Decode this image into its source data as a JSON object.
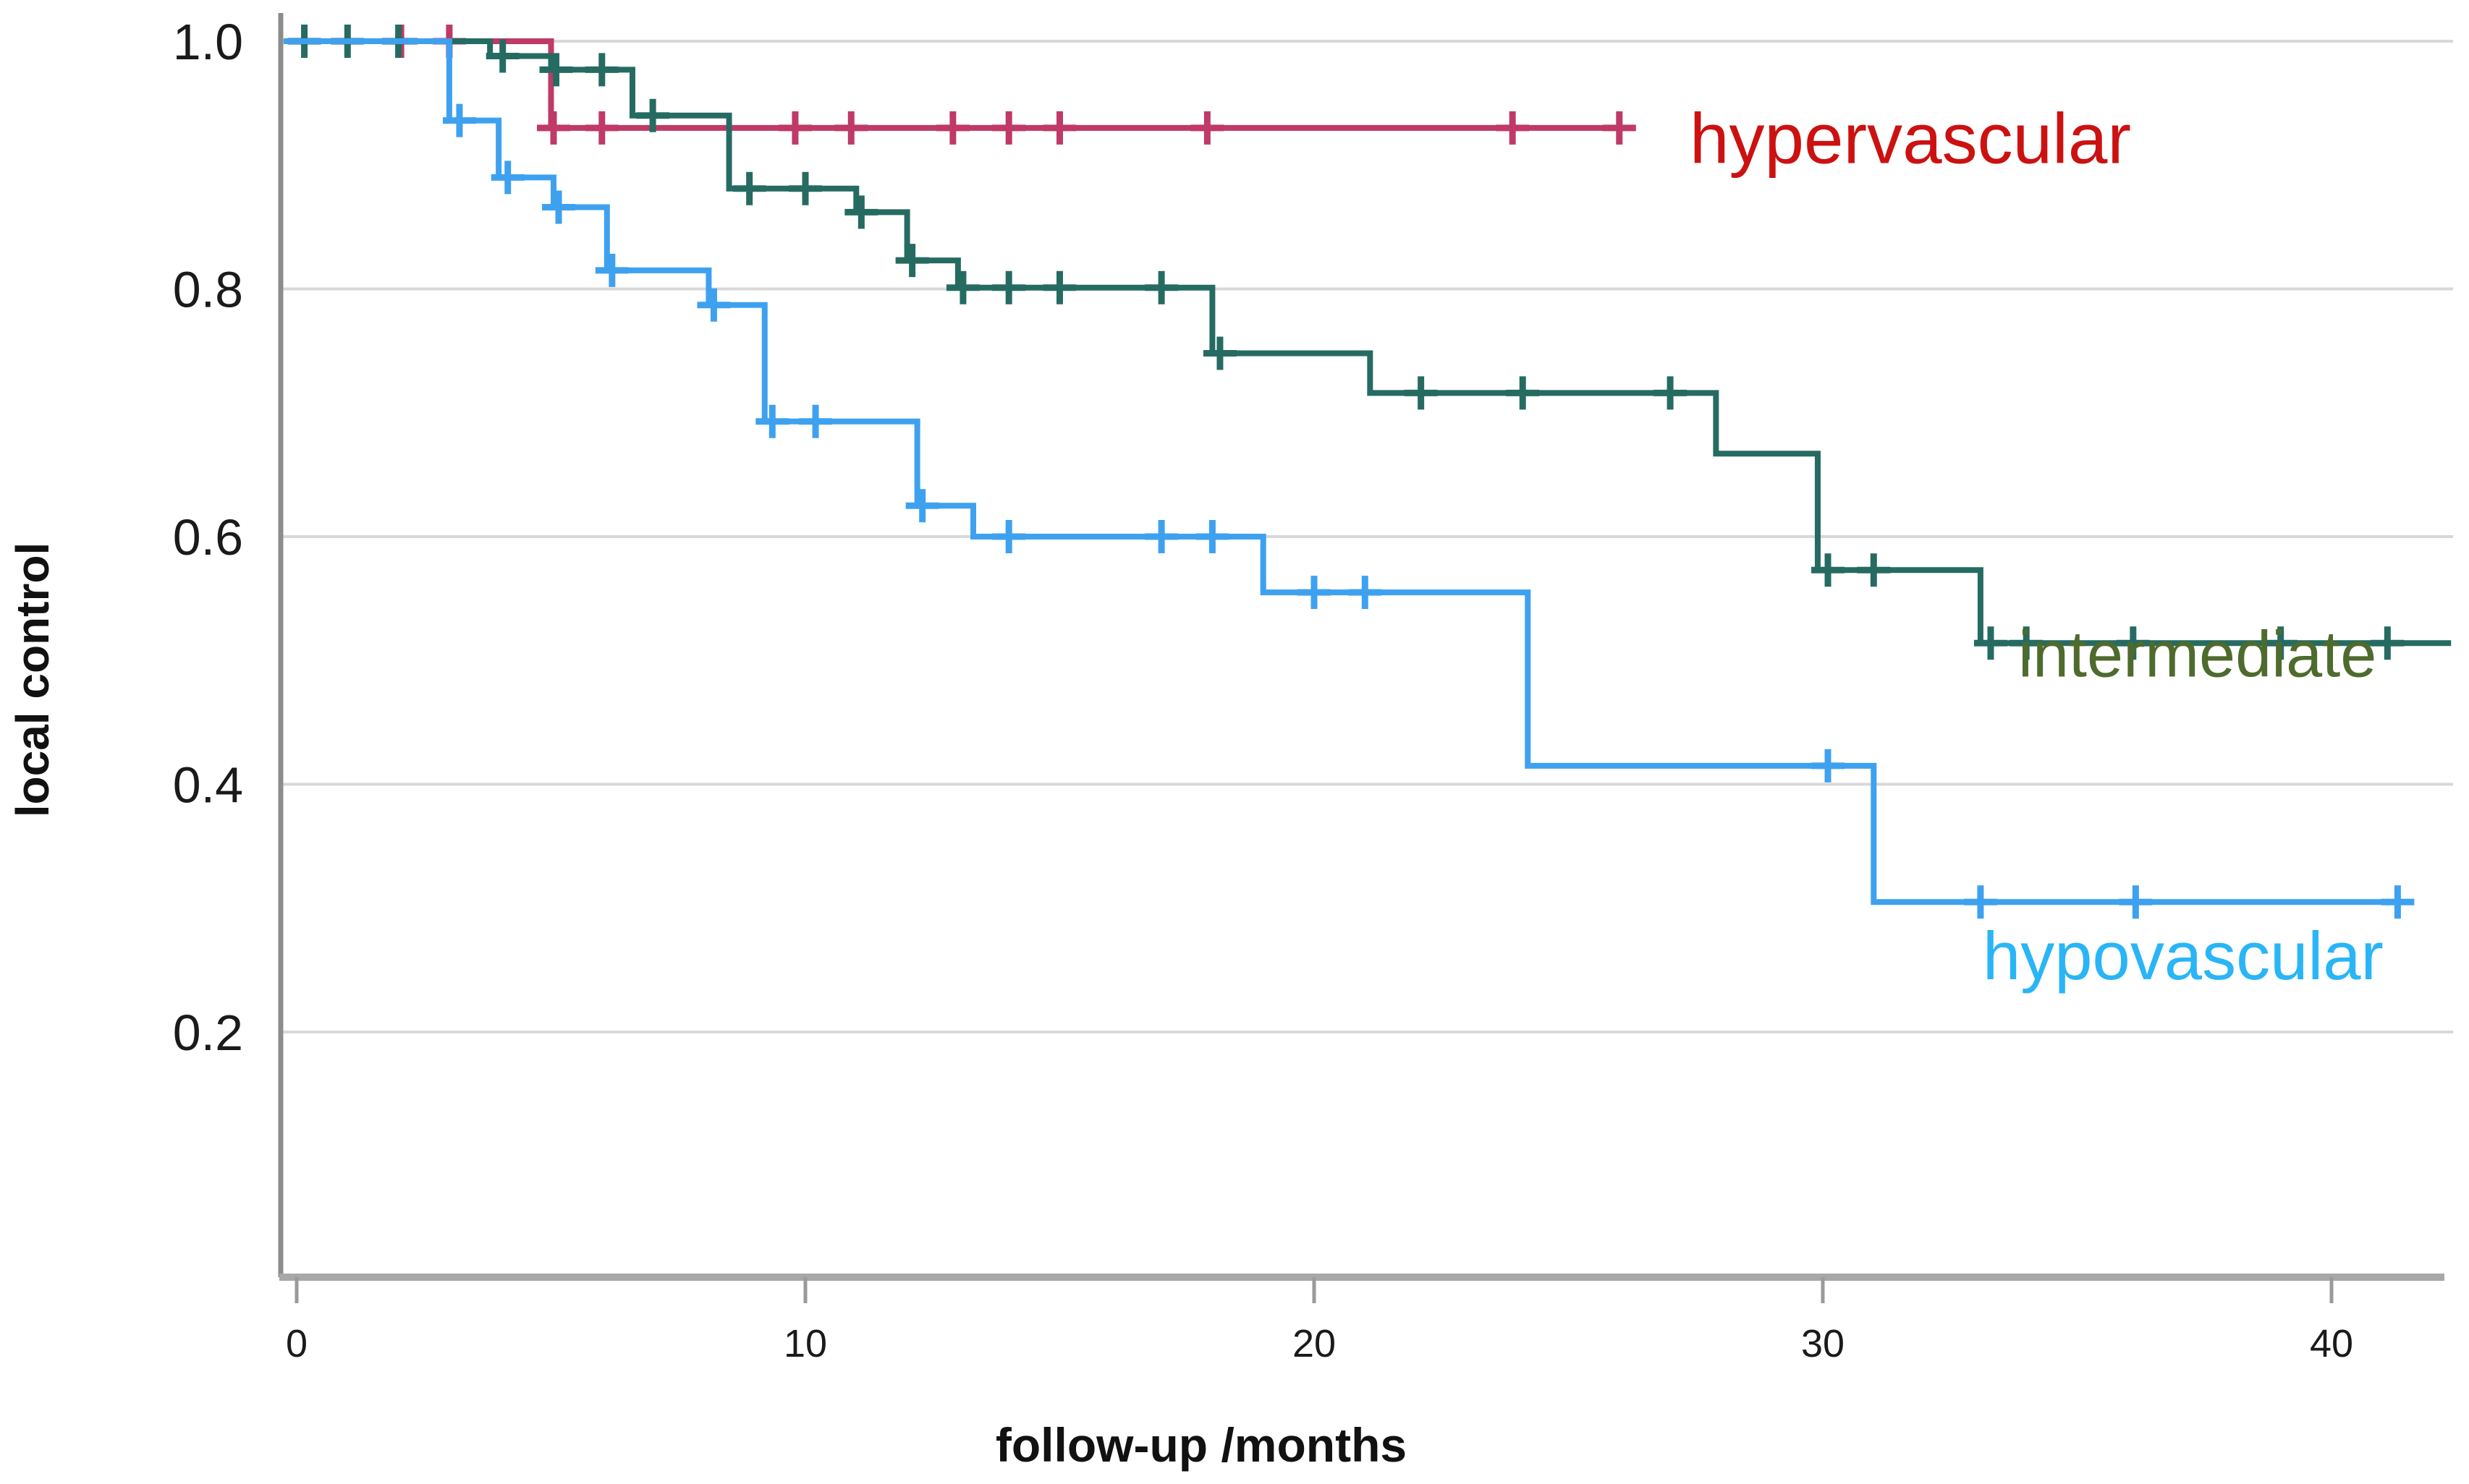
{
  "chart_data": {
    "type": "line",
    "subtype": "kaplan-meier-step",
    "title": "",
    "xlabel": "follow-up /months",
    "ylabel": "local control",
    "grid": true,
    "legend_position": "right-inline",
    "xlim": [
      0,
      42.7
    ],
    "ylim": [
      0,
      1.03
    ],
    "x_ticks": [
      {
        "label": "0",
        "value": 0
      },
      {
        "label": "10",
        "value": 10
      },
      {
        "label": "20",
        "value": 20
      },
      {
        "label": "30",
        "value": 30
      },
      {
        "label": "40",
        "value": 40
      }
    ],
    "y_ticks": [
      {
        "label": "1.0",
        "value": 1.0
      },
      {
        "label": "0.8",
        "value": 0.8
      },
      {
        "label": "0.6",
        "value": 0.6
      },
      {
        "label": "0.4",
        "value": 0.4
      },
      {
        "label": "0.2",
        "value": 0.2
      }
    ],
    "series": [
      {
        "name": "hypervascular",
        "color": "#bf3a66",
        "label_color": "#cc1111",
        "start_value": 1.0,
        "end_time": 26.05,
        "steps": [
          [
            5.0,
            0.93
          ]
        ],
        "censors": [
          [
            2.05,
            1.0
          ],
          [
            3.0,
            1.0
          ],
          [
            5.05,
            0.93
          ],
          [
            6.0,
            0.93
          ],
          [
            9.8,
            0.93
          ],
          [
            10.9,
            0.93
          ],
          [
            12.9,
            0.93
          ],
          [
            14.0,
            0.93
          ],
          [
            15.0,
            0.93
          ],
          [
            17.9,
            0.93
          ],
          [
            23.9,
            0.93
          ],
          [
            26.0,
            0.93
          ]
        ]
      },
      {
        "name": "intermediate",
        "color": "#266b62",
        "label_color": "#4e6b2d",
        "start_value": 1.0,
        "end_time": 42.35,
        "steps": [
          [
            3.8,
            0.988
          ],
          [
            5.0,
            0.977
          ],
          [
            6.6,
            0.94
          ],
          [
            8.5,
            0.881
          ],
          [
            11.0,
            0.862
          ],
          [
            12.0,
            0.823
          ],
          [
            13.0,
            0.801
          ],
          [
            18.0,
            0.748
          ],
          [
            21.1,
            0.716
          ],
          [
            27.9,
            0.667
          ],
          [
            29.9,
            0.573
          ],
          [
            33.1,
            0.514
          ]
        ],
        "censors": [
          [
            0.15,
            1.0
          ],
          [
            1.0,
            1.0
          ],
          [
            2.0,
            1.0
          ],
          [
            4.05,
            0.988
          ],
          [
            5.1,
            0.977
          ],
          [
            6.0,
            0.977
          ],
          [
            7.0,
            0.94
          ],
          [
            8.9,
            0.881
          ],
          [
            10.0,
            0.881
          ],
          [
            11.1,
            0.862
          ],
          [
            12.1,
            0.823
          ],
          [
            13.1,
            0.801
          ],
          [
            14.0,
            0.801
          ],
          [
            15.0,
            0.801
          ],
          [
            17.0,
            0.801
          ],
          [
            18.15,
            0.748
          ],
          [
            22.1,
            0.716
          ],
          [
            24.1,
            0.716
          ],
          [
            27.0,
            0.716
          ],
          [
            30.1,
            0.573
          ],
          [
            31.0,
            0.573
          ],
          [
            33.3,
            0.514
          ],
          [
            34.0,
            0.514
          ],
          [
            36.1,
            0.514
          ],
          [
            39.0,
            0.514
          ],
          [
            41.1,
            0.514
          ]
        ]
      },
      {
        "name": "hypovascular",
        "color": "#3ea1f0",
        "label_color": "#29b5f6",
        "start_value": 1.0,
        "end_time": 41.35,
        "steps": [
          [
            3.0,
            0.936
          ],
          [
            3.97,
            0.89
          ],
          [
            5.05,
            0.866
          ],
          [
            6.1,
            0.815
          ],
          [
            8.1,
            0.787
          ],
          [
            9.2,
            0.693
          ],
          [
            12.2,
            0.625
          ],
          [
            13.3,
            0.6
          ],
          [
            19.0,
            0.555
          ],
          [
            24.2,
            0.415
          ],
          [
            31.0,
            0.305
          ]
        ],
        "censors": [
          [
            3.2,
            0.936
          ],
          [
            4.15,
            0.89
          ],
          [
            5.15,
            0.866
          ],
          [
            6.2,
            0.815
          ],
          [
            8.2,
            0.787
          ],
          [
            9.35,
            0.693
          ],
          [
            10.2,
            0.693
          ],
          [
            12.3,
            0.625
          ],
          [
            14.0,
            0.6
          ],
          [
            17.0,
            0.6
          ],
          [
            18.0,
            0.6
          ],
          [
            20.0,
            0.555
          ],
          [
            21.0,
            0.555
          ],
          [
            30.1,
            0.415
          ],
          [
            33.1,
            0.305
          ],
          [
            36.15,
            0.305
          ],
          [
            41.3,
            0.305
          ]
        ]
      }
    ],
    "colors": {
      "gridline": "#d8d8d8",
      "y_axis_line": "#8c8c8c",
      "x_axis_line": "#a8a8a8",
      "tick_mark": "#9a9a9a",
      "tick_text": "#1a1a1a"
    }
  }
}
